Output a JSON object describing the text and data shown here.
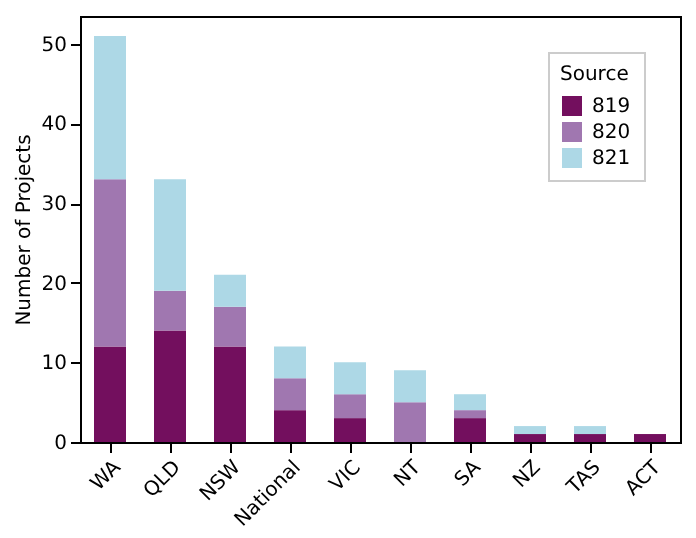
{
  "chart_data": {
    "type": "bar",
    "stacked": true,
    "ylabel": "Number of Projects",
    "legend_title": "Source",
    "legend": "top right",
    "grid": false,
    "categories": [
      "WA",
      "QLD",
      "NSW",
      "National",
      "VIC",
      "NT",
      "SA",
      "NZ",
      "TAS",
      "ACT"
    ],
    "ylim": [
      0,
      53.5
    ],
    "yticks": [
      0,
      10,
      20,
      30,
      40,
      50
    ],
    "series": [
      {
        "name": "819",
        "color": "#730f5e",
        "values": [
          12,
          14,
          12,
          4,
          3,
          0,
          3,
          1,
          1,
          1
        ]
      },
      {
        "name": "820",
        "color": "#a077b0",
        "values": [
          21,
          5,
          5,
          4,
          3,
          5,
          1,
          0,
          0,
          0
        ]
      },
      {
        "name": "821",
        "color": "#add8e6",
        "values": [
          18,
          14,
          4,
          4,
          4,
          4,
          2,
          1,
          1,
          0
        ]
      }
    ]
  }
}
